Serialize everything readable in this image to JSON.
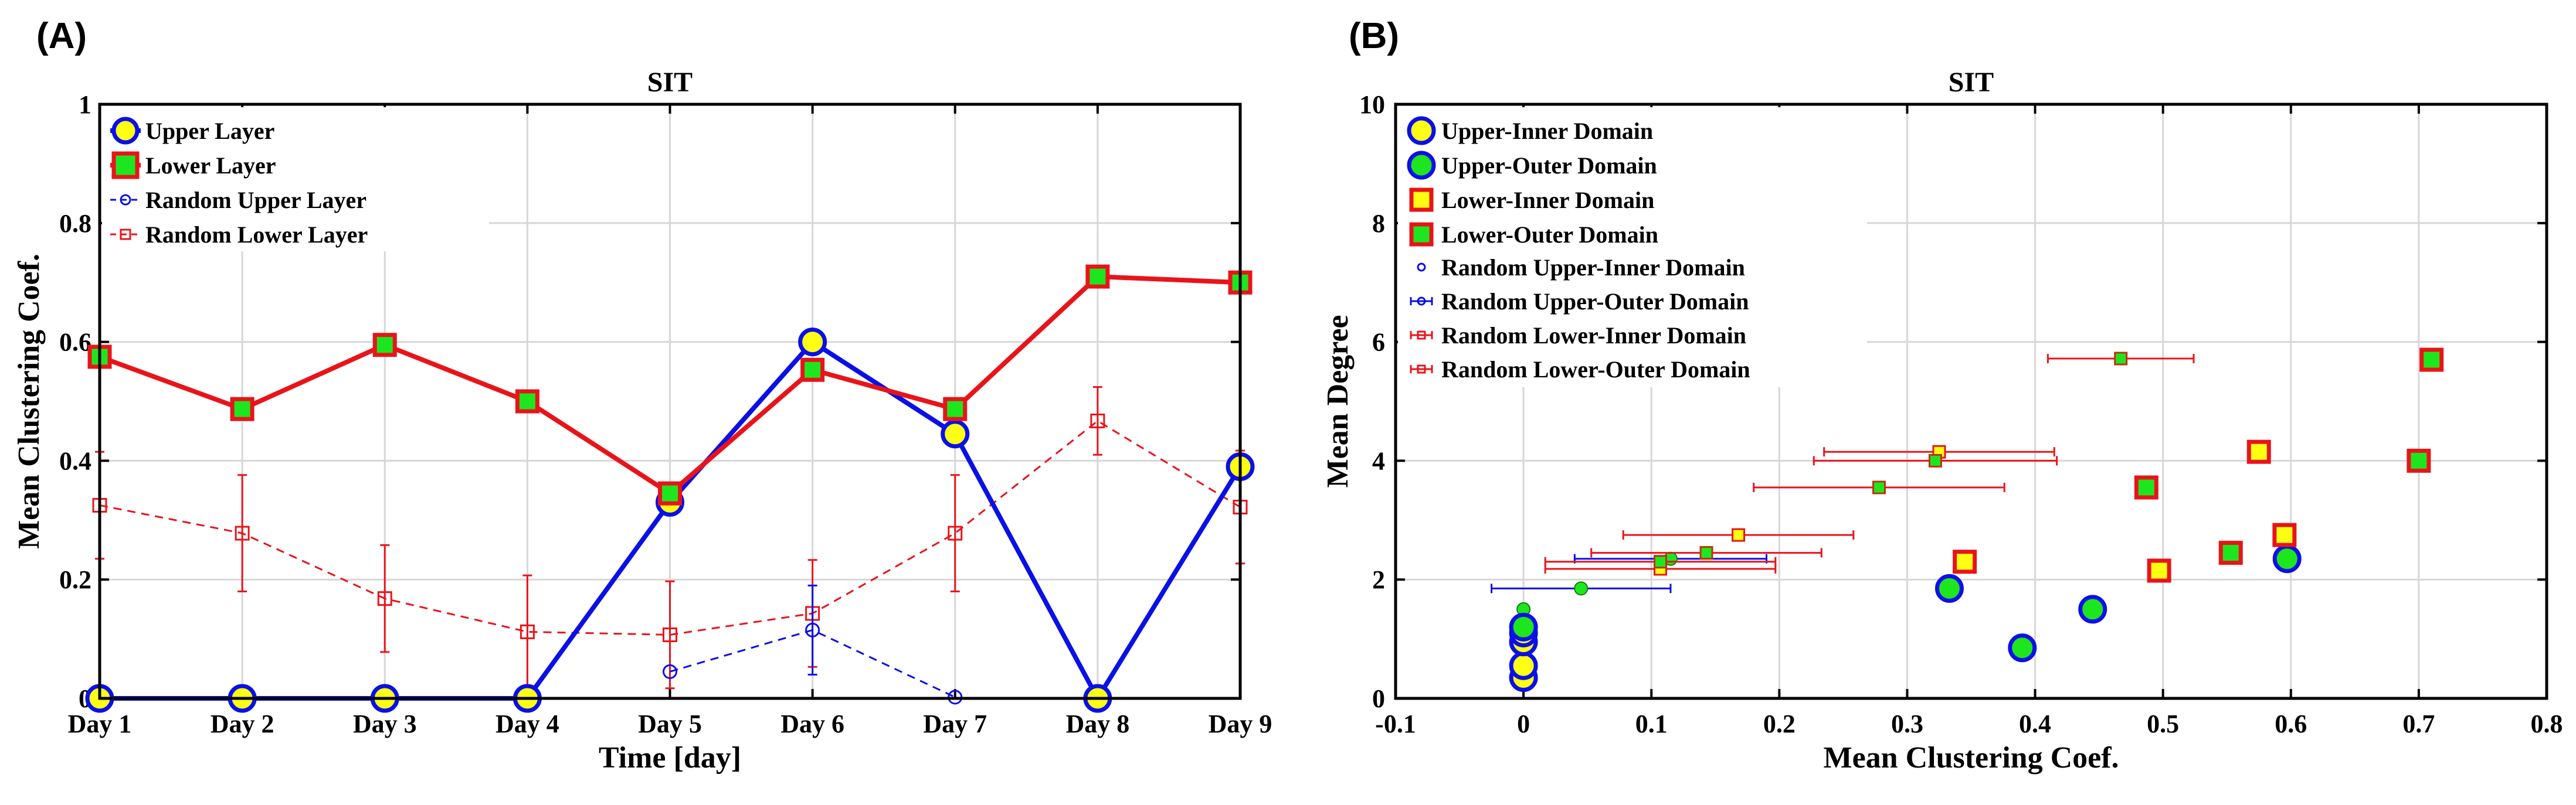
{
  "chart_data": [
    {
      "panel_label": "(A)",
      "type": "line",
      "title": "SIT",
      "xlabel": "Time [day]",
      "ylabel": "Mean Clustering Coef.",
      "categories": [
        "Day 1",
        "Day 2",
        "Day 3",
        "Day 4",
        "Day 5",
        "Day 6",
        "Day 7",
        "Day 8",
        "Day 9"
      ],
      "ylim": [
        0,
        1
      ],
      "yticks": [
        "0",
        "0.2",
        "0.4",
        "0.6",
        "0.8",
        "1"
      ],
      "yticks_values": [
        0,
        0.2,
        0.4,
        0.6,
        0.8,
        1
      ],
      "grid": true,
      "legend_position": "top-left",
      "series": [
        {
          "name": "Upper Layer",
          "style": "solid",
          "marker": "circle",
          "values": [
            0,
            0,
            0,
            0,
            0.33,
            0.6,
            0.445,
            0,
            0.39
          ]
        },
        {
          "name": "Lower Layer",
          "style": "solid",
          "marker": "square",
          "values": [
            0.575,
            0.487,
            0.595,
            0.5,
            0.345,
            0.553,
            0.487,
            0.71,
            0.7
          ]
        },
        {
          "name": "Random Upper Layer",
          "style": "dashed",
          "marker": "open-circle",
          "x": [
            5,
            6,
            7
          ],
          "values": [
            0.045,
            0.115,
            0.002
          ],
          "errors": [
            0,
            0.075,
            0
          ]
        },
        {
          "name": "Random Lower Layer",
          "style": "dashed",
          "marker": "open-square",
          "x": [
            1,
            2,
            3,
            4,
            5,
            6,
            7,
            8,
            9
          ],
          "values": [
            0.325,
            0.278,
            0.168,
            0.112,
            0.107,
            0.143,
            0.278,
            0.467,
            0.322
          ],
          "errors": [
            0.09,
            0.098,
            0.09,
            0.095,
            0.09,
            0.09,
            0.098,
            0.057,
            0.095
          ]
        }
      ]
    },
    {
      "panel_label": "(B)",
      "type": "scatter",
      "title": "SIT",
      "xlabel": "Mean Clustering Coef.",
      "ylabel": "Mean Degree",
      "xlim": [
        -0.1,
        0.8
      ],
      "ylim": [
        0,
        10
      ],
      "xticks": [
        "-0.1",
        "0",
        "0.1",
        "0.2",
        "0.3",
        "0.4",
        "0.5",
        "0.6",
        "0.7",
        "0.8"
      ],
      "xticks_values": [
        -0.1,
        0,
        0.1,
        0.2,
        0.3,
        0.4,
        0.5,
        0.6,
        0.7,
        0.8
      ],
      "yticks": [
        "0",
        "2",
        "4",
        "6",
        "8",
        "10"
      ],
      "yticks_values": [
        0,
        2,
        4,
        6,
        8,
        10
      ],
      "grid": true,
      "legend_position": "top-left",
      "series": [
        {
          "name": "Upper-Inner Domain",
          "marker": "circle-yellow",
          "points": [
            [
              0,
              0.35
            ],
            [
              0,
              0.55
            ],
            [
              0,
              0.95
            ],
            [
              0,
              1.1
            ]
          ]
        },
        {
          "name": "Upper-Outer Domain",
          "marker": "circle-green",
          "points": [
            [
              0,
              1.2
            ],
            [
              0.333,
              1.85
            ],
            [
              0.39,
              0.85
            ],
            [
              0.445,
              1.5
            ],
            [
              0.597,
              2.35
            ]
          ]
        },
        {
          "name": "Lower-Inner Domain",
          "marker": "square-yellow",
          "points": [
            [
              0.345,
              2.3
            ],
            [
              0.497,
              2.15
            ],
            [
              0.575,
              4.15
            ],
            [
              0.595,
              2.75
            ]
          ]
        },
        {
          "name": "Lower-Outer Domain",
          "marker": "square-green",
          "points": [
            [
              0.487,
              3.55
            ],
            [
              0.553,
              2.45
            ],
            [
              0.7,
              4.0
            ],
            [
              0.71,
              5.7
            ]
          ]
        },
        {
          "name": "Random Upper-Inner Domain",
          "marker": "small-circle-green",
          "points": [
            [
              0,
              1.5
            ]
          ],
          "xerr": [
            0
          ]
        },
        {
          "name": "Random Upper-Outer Domain",
          "marker": "small-circle-green",
          "points": [
            [
              0.045,
              1.85
            ],
            [
              0.115,
              2.35
            ]
          ],
          "xerr": [
            0.07,
            0.075
          ]
        },
        {
          "name": "Random Lower-Inner Domain",
          "marker": "small-square-yellow",
          "points": [
            [
              0.107,
              2.18
            ],
            [
              0.168,
              2.75
            ],
            [
              0.325,
              4.15
            ]
          ],
          "xerr": [
            0.09,
            0.09,
            0.09
          ]
        },
        {
          "name": "Random Lower-Outer Domain",
          "marker": "small-square-green",
          "points": [
            [
              0.107,
              2.3
            ],
            [
              0.143,
              2.45
            ],
            [
              0.278,
              3.55
            ],
            [
              0.322,
              4.0
            ],
            [
              0.467,
              5.72
            ]
          ],
          "xerr": [
            0.09,
            0.09,
            0.098,
            0.095,
            0.057
          ]
        }
      ]
    }
  ],
  "colors": {
    "upper_line": "#0a10e6",
    "lower_line": "#e8141a",
    "yellow_fill": "#ffff14",
    "green_fill": "#1ee61e",
    "grid": "#d7d7d7"
  }
}
